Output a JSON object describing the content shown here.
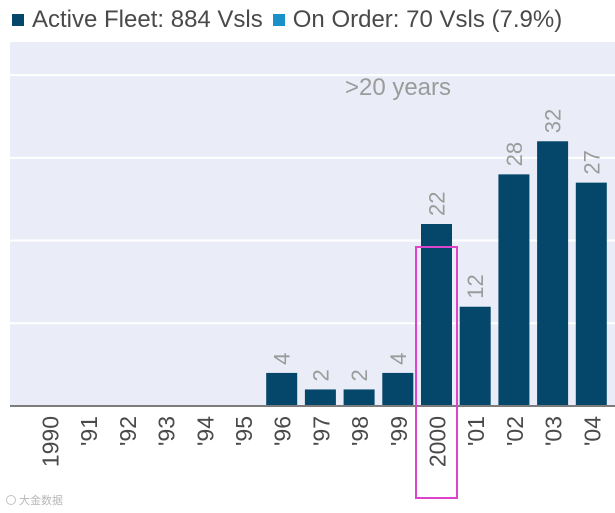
{
  "colors": {
    "active": "#04476b",
    "on_order": "#1b90c9",
    "plot_bg": "#eaedf7",
    "grid": "#ffffff",
    "axis": "#7d7d7d",
    "label": "#9b9b9b",
    "highlight": "#dd44cc"
  },
  "chart_data": {
    "type": "bar",
    "title": "",
    "xlabel": "",
    "ylabel": "",
    "ylim": [
      0,
      44
    ],
    "grid": true,
    "legend_position": "top",
    "annotation": ">20 years",
    "highlighted_category": "2000",
    "categories": [
      "1990",
      "'91",
      "'92",
      "'93",
      "'94",
      "'95",
      "'96",
      "'97",
      "'98",
      "'99",
      "2000",
      "'01",
      "'02",
      "'03",
      "'04"
    ],
    "series": [
      {
        "name": "Active Fleet: 884 Vsls",
        "color_key": "active",
        "values": [
          null,
          null,
          null,
          null,
          null,
          null,
          4,
          2,
          2,
          4,
          22,
          12,
          28,
          32,
          27
        ],
        "labels": [
          "",
          "",
          "",
          "",
          "",
          "",
          "4",
          "2",
          "2",
          "4",
          "22",
          "12",
          "28",
          "32",
          "27"
        ]
      },
      {
        "name": "On Order: 70 Vsls (7.9%)",
        "color_key": "on_order",
        "values": [
          null,
          null,
          null,
          null,
          null,
          null,
          null,
          null,
          null,
          null,
          null,
          null,
          null,
          null,
          null
        ]
      }
    ]
  },
  "watermark": {
    "text": "大金数据"
  }
}
